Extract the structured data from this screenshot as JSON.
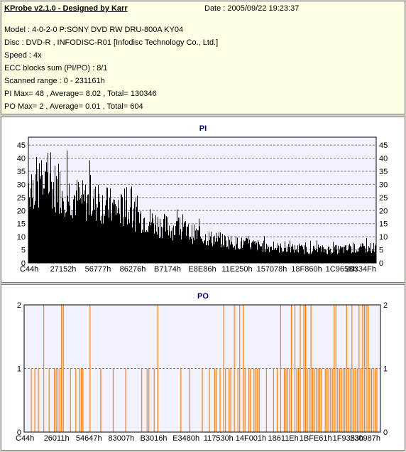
{
  "info": {
    "title": "KProbe v2.1.0 - Designed by Karr",
    "date": "Date : 2005/09/22 19:23:37",
    "lines": [
      "Model : 4-0-2-0 P:SONY    DVD RW DRU-800A  KY04",
      "Disc : DVD-R , INFODISC-R01 [Infodisc Technology Co., Ltd.]",
      "Speed : 4x",
      "ECC blocks sum (PI/PO) : 8/1",
      "Scanned range : 0 - 231161h",
      "PI Max= 48 , Average= 8.02 , Total= 130346",
      "PO Max= 2 , Average= 0.01 , Total= 604"
    ]
  },
  "chart_data": [
    {
      "type": "bar",
      "title": "PI",
      "color": "#000000",
      "ylim": [
        0,
        48
      ],
      "yticks": [
        0,
        5,
        10,
        15,
        20,
        25,
        30,
        35,
        40,
        45
      ],
      "xticks": [
        "C44h",
        "27152h",
        "56777h",
        "86276h",
        "B7174h",
        "E8E86h",
        "11E250h",
        "157078h",
        "18F860h",
        "1C9658h",
        "20334Fh"
      ],
      "grid": true,
      "envelope": [
        [
          0,
          36
        ],
        [
          0.08,
          34
        ],
        [
          0.15,
          28
        ],
        [
          0.22,
          26
        ],
        [
          0.3,
          22
        ],
        [
          0.38,
          17
        ],
        [
          0.45,
          14
        ],
        [
          0.52,
          11
        ],
        [
          0.6,
          9
        ],
        [
          0.7,
          7
        ],
        [
          0.8,
          6
        ],
        [
          0.9,
          6
        ],
        [
          1.0,
          7
        ]
      ]
    },
    {
      "type": "bar",
      "title": "PO",
      "color": "#ff7f00",
      "ylim": [
        0,
        2
      ],
      "yticks": [
        0,
        1,
        2
      ],
      "xticks": [
        "C44h",
        "26011h",
        "54647h",
        "83007h",
        "B3016h",
        "E3480h",
        "117530h",
        "14F001h",
        "18611Eh",
        "1BFE61h",
        "1F9353h",
        "230987h"
      ],
      "grid": true,
      "spikes_value_2": [
        0.055,
        0.105,
        0.11,
        0.185,
        0.375,
        0.56,
        0.59,
        0.605,
        0.615,
        0.72,
        0.75,
        0.76,
        0.775,
        0.785,
        0.79,
        0.805,
        0.87,
        0.875,
        0.905,
        0.92,
        0.94,
        0.95,
        0.955,
        0.96,
        0.965
      ],
      "spikes_value_1": [
        0.02,
        0.03,
        0.04,
        0.07,
        0.085,
        0.09,
        0.095,
        0.1,
        0.13,
        0.145,
        0.155,
        0.16,
        0.165,
        0.215,
        0.25,
        0.285,
        0.33,
        0.345,
        0.35,
        0.365,
        0.44,
        0.465,
        0.5,
        0.52,
        0.535,
        0.54,
        0.55,
        0.565,
        0.575,
        0.58,
        0.6,
        0.62,
        0.63,
        0.635,
        0.645,
        0.65,
        0.655,
        0.66,
        0.68,
        0.7,
        0.71,
        0.73,
        0.735,
        0.74,
        0.745,
        0.765,
        0.77,
        0.795,
        0.8,
        0.81,
        0.815,
        0.82,
        0.825,
        0.83,
        0.835,
        0.845,
        0.85,
        0.855,
        0.86,
        0.865,
        0.88,
        0.885,
        0.89,
        0.895,
        0.9,
        0.91,
        0.915,
        0.925,
        0.93,
        0.935,
        0.945,
        0.97,
        0.975,
        0.98,
        0.985,
        0.99
      ]
    }
  ]
}
